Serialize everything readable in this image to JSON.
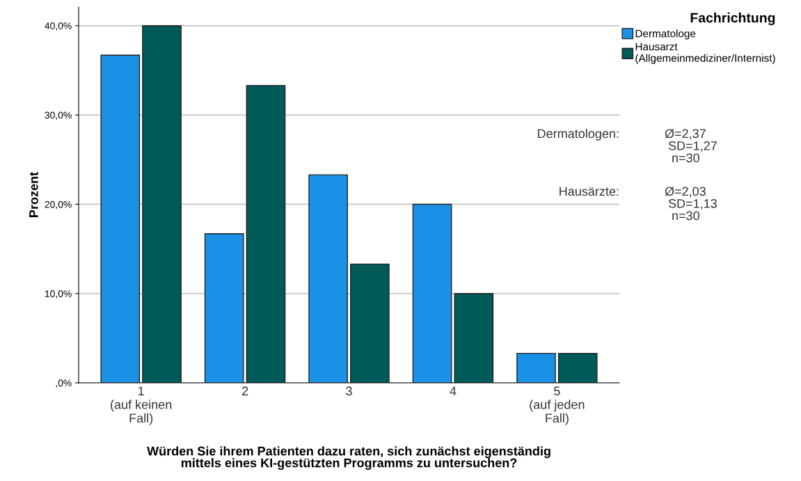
{
  "chart_data": {
    "type": "bar",
    "xlabel": "Würden Sie ihrem Patienten dazu raten, sich zunächst eigenständig\nmittels eines KI-gestützten Programms zu untersuchen?",
    "ylabel": "Prozent",
    "legend_title": "Fachrichtung",
    "categories": [
      "1\n(auf keinen\nFall)",
      "2",
      "3",
      "4",
      "5\n(auf jeden\nFall)"
    ],
    "series": [
      {
        "name": "Dermatologe",
        "color": "#1a90e6",
        "values": [
          36.7,
          16.7,
          23.3,
          20.0,
          3.3
        ]
      },
      {
        "name": "Hausarzt\n(Allgemeinmediziner/Internist)",
        "color": "#005a58",
        "values": [
          40.0,
          33.3,
          13.3,
          10.0,
          3.3
        ]
      }
    ],
    "ylim": [
      0,
      42.1
    ],
    "yticks": [
      {
        "value": 0,
        "label": ",0%"
      },
      {
        "value": 10,
        "label": "10,0%"
      },
      {
        "value": 20,
        "label": "20,0%"
      },
      {
        "value": 30,
        "label": "30,0%"
      },
      {
        "value": 40,
        "label": "40,0%"
      }
    ],
    "grid": "y",
    "legend": "top right",
    "annotations": [
      "Dermatologen:",
      "Ø=2,37\n SD=1,27\n  n=30",
      "Hausärzte:",
      "Ø=2,03\n SD=1,13\n  n=30"
    ]
  }
}
